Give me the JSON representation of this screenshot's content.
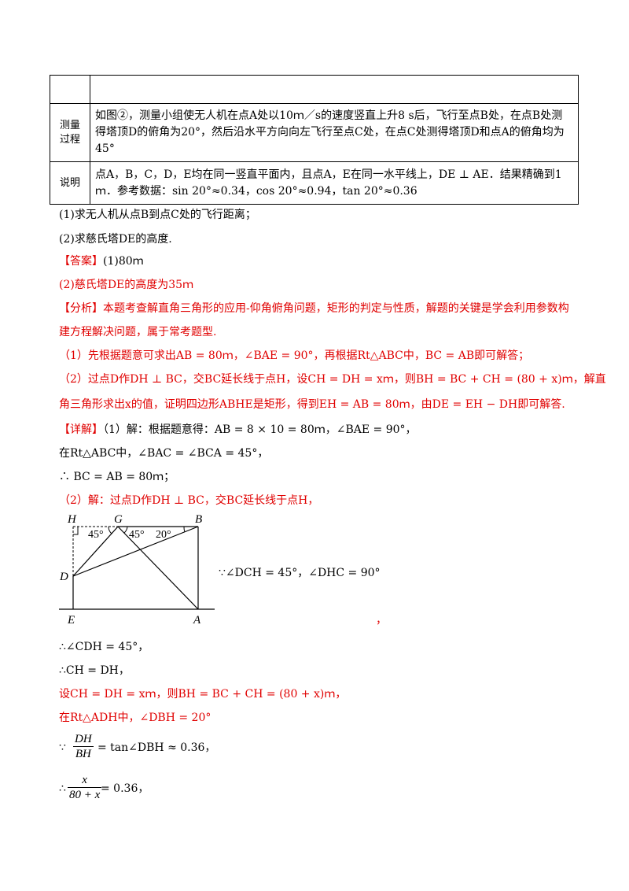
{
  "table": {
    "rows": [
      {
        "head": "",
        "content": ""
      },
      {
        "head": "测量过程",
        "content": "如图②，测量小组使无人机在点A处以10ｍ／s的速度竖直上升8 s后，飞行至点B处，在点B处测得塔顶D的俯角为20°，然后沿水平方向向左飞行至点C处，在点C处测得塔顶D和点A的俯角均为45°"
      },
      {
        "head": "说明",
        "content": "点A，B，C，D，E均在同一竖直平面内，且点A，E在同一水平线上，DE ⊥ AE．结果精确到1ｍ．参考数据：sin 20°≈0.34，cos 20°≈0.94，tan 20°≈0.36"
      }
    ]
  },
  "questions": {
    "q1": "(1)求无人机从点B到点C处的飞行距离；",
    "q2": "(2)求慈氏塔DE的高度."
  },
  "answer": {
    "label": "【答案】",
    "a1": "(1)80ｍ",
    "a2": "(2)慈氏塔DE的高度为35ｍ"
  },
  "analysis": {
    "label": "【分析】",
    "line1": "本题考查解直角三角形的应用-仰角俯角问题，矩形的判定与性质，解题的关键是学会利用参数构",
    "line2": "建方程解决问题，属于常考题型.",
    "line3": "（1）先根据题意可求出AB = 80ｍ，∠BAE = 90°，再根据Rt△ABC中，BC = AB即可解答；",
    "line4": "（2）过点D作DH ⊥ BC，交BC延长线于点H，设CH = DH = xｍ，则BH = BC + CH = (80 + x)ｍ，解直",
    "line5": "角三角形求出x的值，证明四边形ABHE是矩形，得到EH = AB = 80ｍ，由DE = EH − DH即可解答."
  },
  "detail": {
    "label": "【详解】",
    "line1": "（1）解：根据题意得：AB = 8 × 10 = 80ｍ，∠BAE = 90°，",
    "line2": "在Rt△ABC中，∠BAC = ∠BCA = 45°，",
    "line3": "∴ BC = AB = 80ｍ；",
    "line4": "（2）解：过点D作DH ⊥ BC，交BC延长线于点H，",
    "beside_figure": "∵∠DCH = 45°，∠DHC = 90°",
    "comma_after_figure": "，",
    "line5": "∴∠CDH = 45°，",
    "line6": "∴CH = DH，",
    "line7": "设CH = DH = xｍ，则BH = BC + CH = (80 + x)ｍ，",
    "line8": "在Rt△ADH中，∠DBH = 20°",
    "frac1_prefix": "∵",
    "frac1_num": "DH",
    "frac1_den": "BH",
    "frac1_suffix": "= tan∠DBH ≈ 0.36，",
    "frac2_prefix": "∴",
    "frac2_num": "x",
    "frac2_den": "80 + x",
    "frac2_suffix": "= 0.36，"
  },
  "figure": {
    "labels": {
      "H": "H",
      "G": "G",
      "B": "B",
      "D": "D",
      "E": "E",
      "A": "A"
    },
    "angles": {
      "left": "45°",
      "mid": "45°",
      "right": "20°"
    }
  }
}
